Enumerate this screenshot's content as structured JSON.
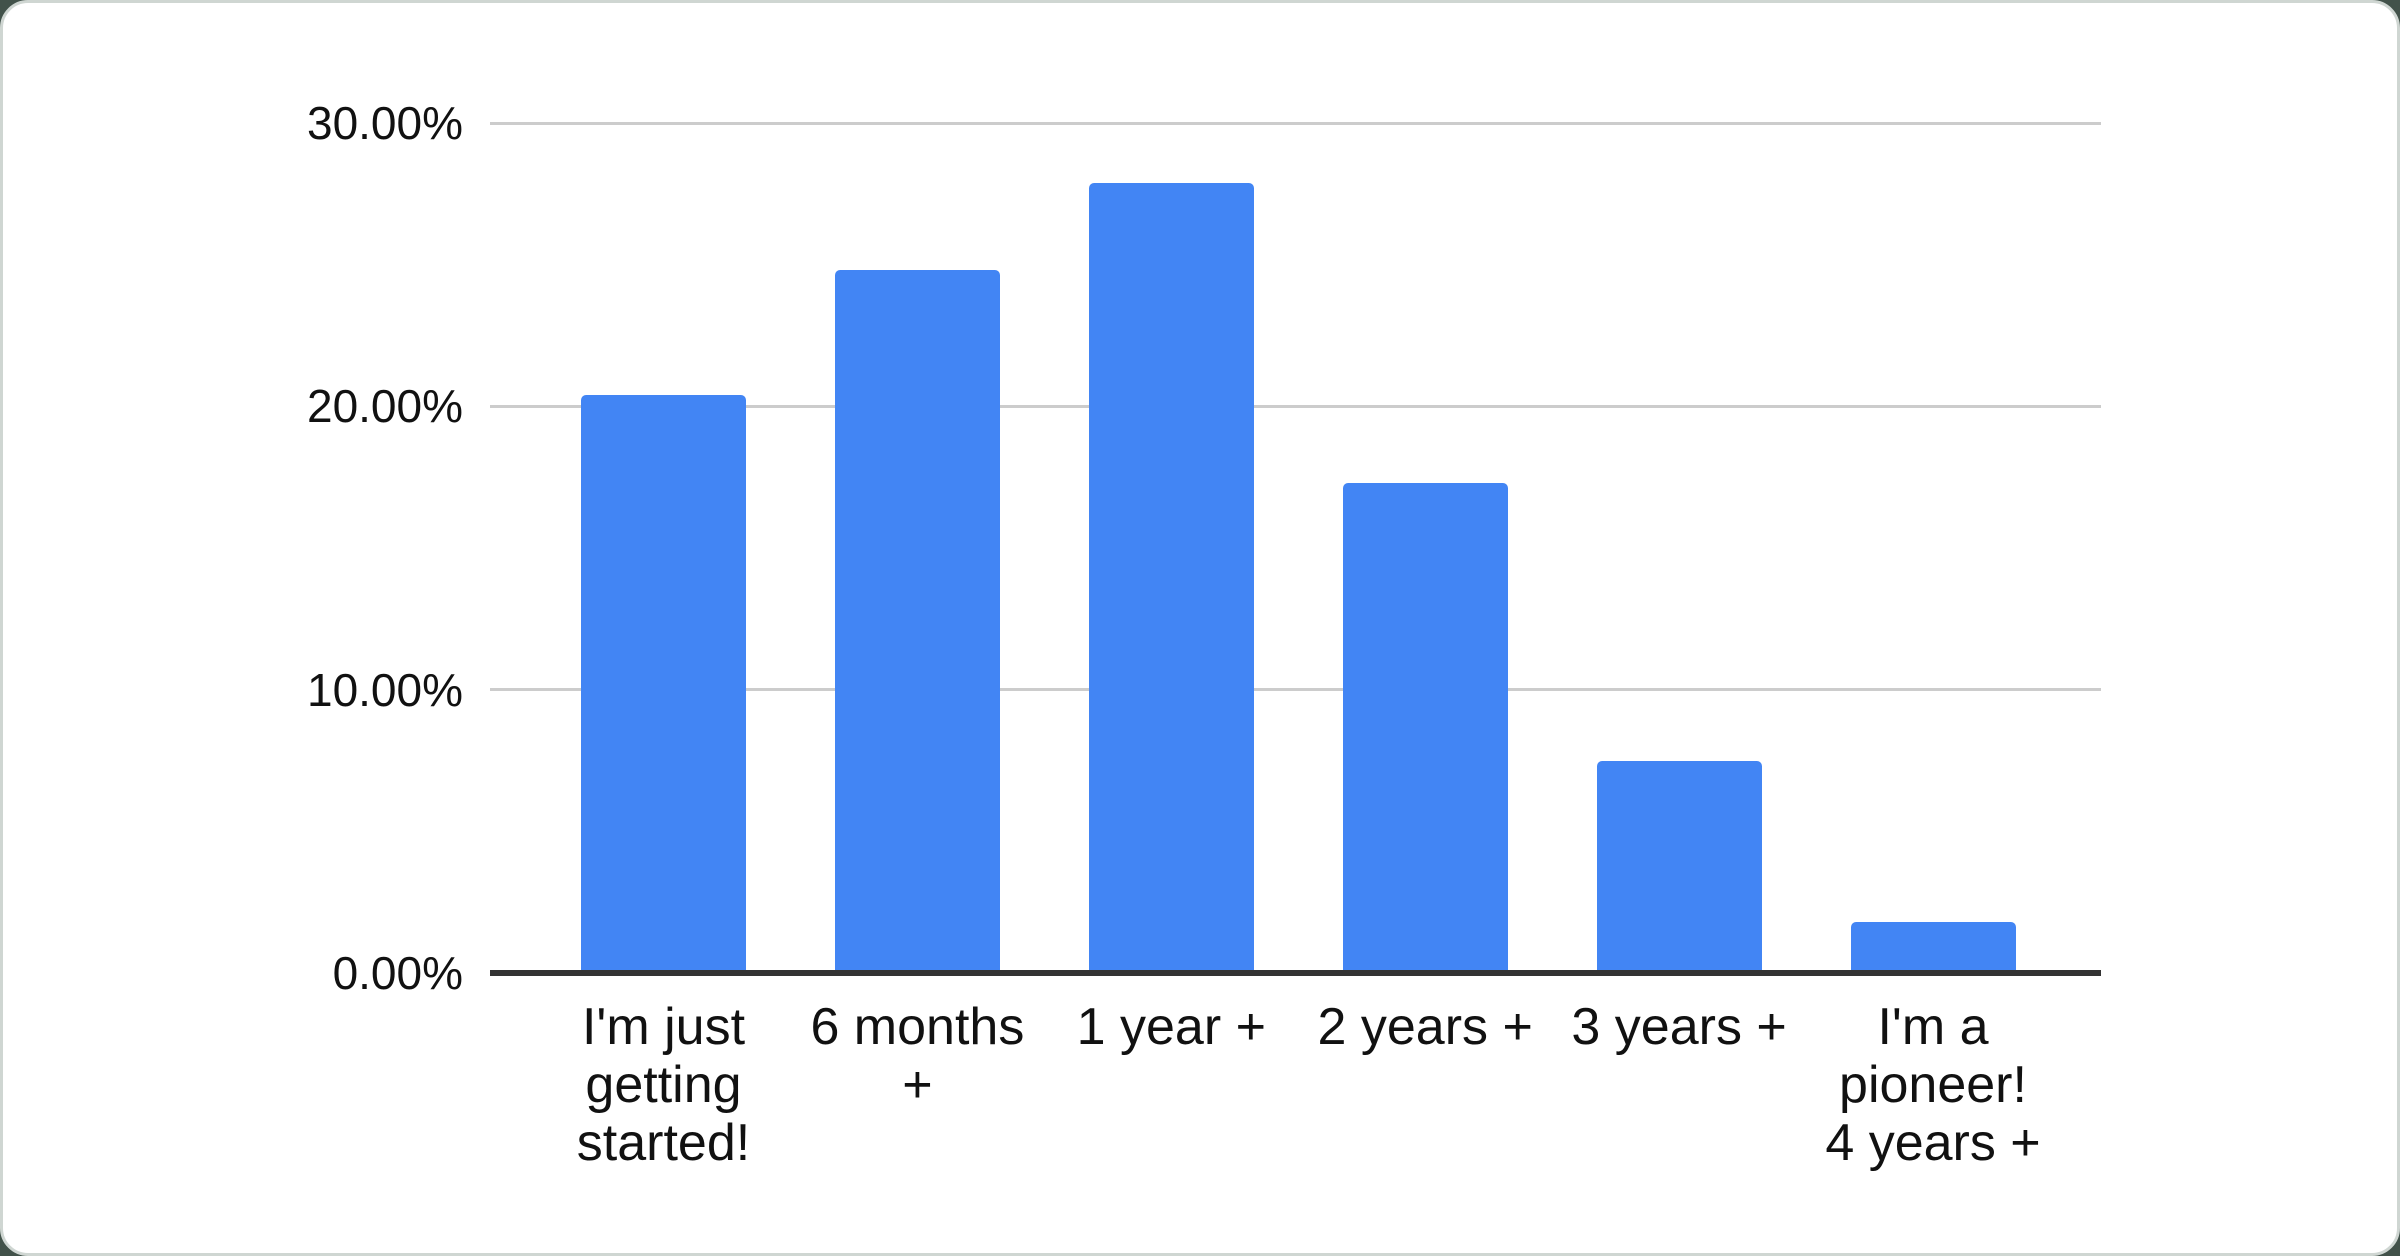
{
  "chart_data": {
    "type": "bar",
    "title": "",
    "xlabel": "",
    "ylabel": "",
    "categories": [
      "I'm just getting started!",
      "6 months +",
      "1 year +",
      "2 years +",
      "3 years +",
      "I'm a pioneer! 4 years +"
    ],
    "categories_display": [
      "I'm just\ngetting\nstarted!",
      "6 months\n+",
      "1 year +",
      "2 years +",
      "3 years +",
      "I'm a\npioneer!\n4 years +"
    ],
    "values": [
      20.4,
      24.8,
      27.9,
      17.3,
      7.5,
      1.8
    ],
    "unit": "%",
    "ylim": [
      0,
      30
    ],
    "yticks": [
      {
        "label": "0.00%",
        "value": 0
      },
      {
        "label": "10.00%",
        "value": 10
      },
      {
        "label": "20.00%",
        "value": 20
      },
      {
        "label": "30.00%",
        "value": 30
      }
    ],
    "grid": true,
    "legend": "none",
    "colors": {
      "bar": "#4285f4",
      "gridline": "#cccccc",
      "axis_line": "#333333",
      "text": "#111111",
      "card_background": "#ffffff",
      "card_border": "#cfd6d2",
      "page_background": "#42524a"
    }
  }
}
